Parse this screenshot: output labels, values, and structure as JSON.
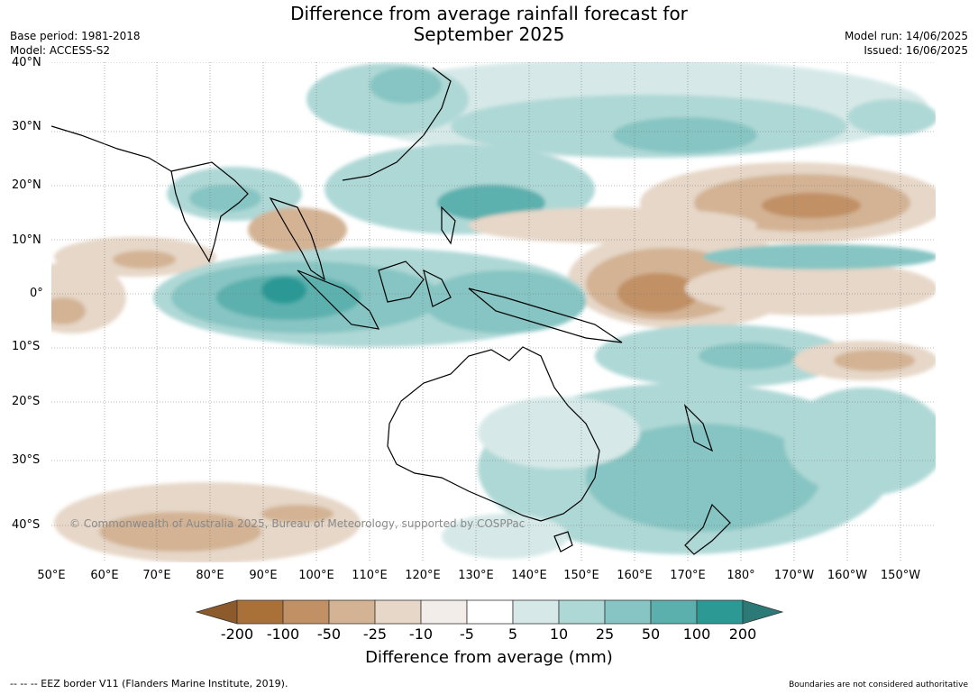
{
  "title": "Difference from average rainfall forecast for",
  "subtitle": "September 2025",
  "meta": {
    "base_period": "Base period: 1981-2018",
    "model": "Model: ACCESS-S2",
    "model_run": "Model run: 14/06/2025",
    "issued": "Issued: 16/06/2025"
  },
  "latitudes": [
    "40°N",
    "30°N",
    "20°N",
    "10°N",
    "0°",
    "10°S",
    "20°S",
    "30°S",
    "40°S"
  ],
  "longitudes": [
    "50°E",
    "60°E",
    "70°E",
    "80°E",
    "90°E",
    "100°E",
    "110°E",
    "120°E",
    "130°E",
    "140°E",
    "150°E",
    "160°E",
    "170°E",
    "180°",
    "170°W",
    "160°W",
    "150°W"
  ],
  "copyright": "© Commonwealth of Australia 2025, Bureau of Meteorology, supported by COSPPac",
  "colorbar": {
    "label": "Difference from average (mm)",
    "ticks": [
      "-200",
      "-100",
      "-50",
      "-25",
      "-10",
      "-5",
      "5",
      "10",
      "25",
      "50",
      "100",
      "200"
    ],
    "colors": {
      "below_-200": "#8c5a2b",
      "-200_-100": "#a97038",
      "-100_-50": "#c19065",
      "-50_-25": "#d3b394",
      "-25_-10": "#e6d7c8",
      "-10_-5": "#f2ede9",
      "-5_5": "#ffffff",
      "5_10": "#d6e9e8",
      "10_25": "#aed8d6",
      "25_50": "#86c5c3",
      "50_100": "#5bb0ae",
      "100_200": "#2c9995",
      "above_200": "#2c7a77"
    }
  },
  "footer": {
    "eez": "--  --  -- EEZ border V11 (Flanders Marine Institute, 2019).",
    "boundaries": "Boundaries are not considered authoritative"
  }
}
